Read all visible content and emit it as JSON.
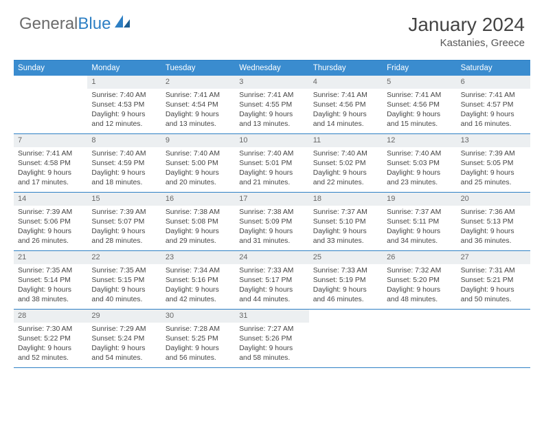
{
  "logo": {
    "text1": "General",
    "text2": "Blue"
  },
  "title": "January 2024",
  "location": "Kastanies, Greece",
  "colors": {
    "header_bg": "#3a8ccf",
    "header_text": "#ffffff",
    "rule": "#2d7fc4",
    "daynum_bg": "#eceff1",
    "text": "#444444",
    "logo_gray": "#6b6b6b",
    "logo_blue": "#2d7fc4"
  },
  "dayheads": [
    "Sunday",
    "Monday",
    "Tuesday",
    "Wednesday",
    "Thursday",
    "Friday",
    "Saturday"
  ],
  "weeks": [
    [
      null,
      {
        "n": "1",
        "sr": "7:40 AM",
        "ss": "4:53 PM",
        "dl": "9 hours and 12 minutes."
      },
      {
        "n": "2",
        "sr": "7:41 AM",
        "ss": "4:54 PM",
        "dl": "9 hours and 13 minutes."
      },
      {
        "n": "3",
        "sr": "7:41 AM",
        "ss": "4:55 PM",
        "dl": "9 hours and 13 minutes."
      },
      {
        "n": "4",
        "sr": "7:41 AM",
        "ss": "4:56 PM",
        "dl": "9 hours and 14 minutes."
      },
      {
        "n": "5",
        "sr": "7:41 AM",
        "ss": "4:56 PM",
        "dl": "9 hours and 15 minutes."
      },
      {
        "n": "6",
        "sr": "7:41 AM",
        "ss": "4:57 PM",
        "dl": "9 hours and 16 minutes."
      }
    ],
    [
      {
        "n": "7",
        "sr": "7:41 AM",
        "ss": "4:58 PM",
        "dl": "9 hours and 17 minutes."
      },
      {
        "n": "8",
        "sr": "7:40 AM",
        "ss": "4:59 PM",
        "dl": "9 hours and 18 minutes."
      },
      {
        "n": "9",
        "sr": "7:40 AM",
        "ss": "5:00 PM",
        "dl": "9 hours and 20 minutes."
      },
      {
        "n": "10",
        "sr": "7:40 AM",
        "ss": "5:01 PM",
        "dl": "9 hours and 21 minutes."
      },
      {
        "n": "11",
        "sr": "7:40 AM",
        "ss": "5:02 PM",
        "dl": "9 hours and 22 minutes."
      },
      {
        "n": "12",
        "sr": "7:40 AM",
        "ss": "5:03 PM",
        "dl": "9 hours and 23 minutes."
      },
      {
        "n": "13",
        "sr": "7:39 AM",
        "ss": "5:05 PM",
        "dl": "9 hours and 25 minutes."
      }
    ],
    [
      {
        "n": "14",
        "sr": "7:39 AM",
        "ss": "5:06 PM",
        "dl": "9 hours and 26 minutes."
      },
      {
        "n": "15",
        "sr": "7:39 AM",
        "ss": "5:07 PM",
        "dl": "9 hours and 28 minutes."
      },
      {
        "n": "16",
        "sr": "7:38 AM",
        "ss": "5:08 PM",
        "dl": "9 hours and 29 minutes."
      },
      {
        "n": "17",
        "sr": "7:38 AM",
        "ss": "5:09 PM",
        "dl": "9 hours and 31 minutes."
      },
      {
        "n": "18",
        "sr": "7:37 AM",
        "ss": "5:10 PM",
        "dl": "9 hours and 33 minutes."
      },
      {
        "n": "19",
        "sr": "7:37 AM",
        "ss": "5:11 PM",
        "dl": "9 hours and 34 minutes."
      },
      {
        "n": "20",
        "sr": "7:36 AM",
        "ss": "5:13 PM",
        "dl": "9 hours and 36 minutes."
      }
    ],
    [
      {
        "n": "21",
        "sr": "7:35 AM",
        "ss": "5:14 PM",
        "dl": "9 hours and 38 minutes."
      },
      {
        "n": "22",
        "sr": "7:35 AM",
        "ss": "5:15 PM",
        "dl": "9 hours and 40 minutes."
      },
      {
        "n": "23",
        "sr": "7:34 AM",
        "ss": "5:16 PM",
        "dl": "9 hours and 42 minutes."
      },
      {
        "n": "24",
        "sr": "7:33 AM",
        "ss": "5:17 PM",
        "dl": "9 hours and 44 minutes."
      },
      {
        "n": "25",
        "sr": "7:33 AM",
        "ss": "5:19 PM",
        "dl": "9 hours and 46 minutes."
      },
      {
        "n": "26",
        "sr": "7:32 AM",
        "ss": "5:20 PM",
        "dl": "9 hours and 48 minutes."
      },
      {
        "n": "27",
        "sr": "7:31 AM",
        "ss": "5:21 PM",
        "dl": "9 hours and 50 minutes."
      }
    ],
    [
      {
        "n": "28",
        "sr": "7:30 AM",
        "ss": "5:22 PM",
        "dl": "9 hours and 52 minutes."
      },
      {
        "n": "29",
        "sr": "7:29 AM",
        "ss": "5:24 PM",
        "dl": "9 hours and 54 minutes."
      },
      {
        "n": "30",
        "sr": "7:28 AM",
        "ss": "5:25 PM",
        "dl": "9 hours and 56 minutes."
      },
      {
        "n": "31",
        "sr": "7:27 AM",
        "ss": "5:26 PM",
        "dl": "9 hours and 58 minutes."
      },
      null,
      null,
      null
    ]
  ],
  "labels": {
    "sunrise": "Sunrise:",
    "sunset": "Sunset:",
    "daylight": "Daylight:"
  }
}
